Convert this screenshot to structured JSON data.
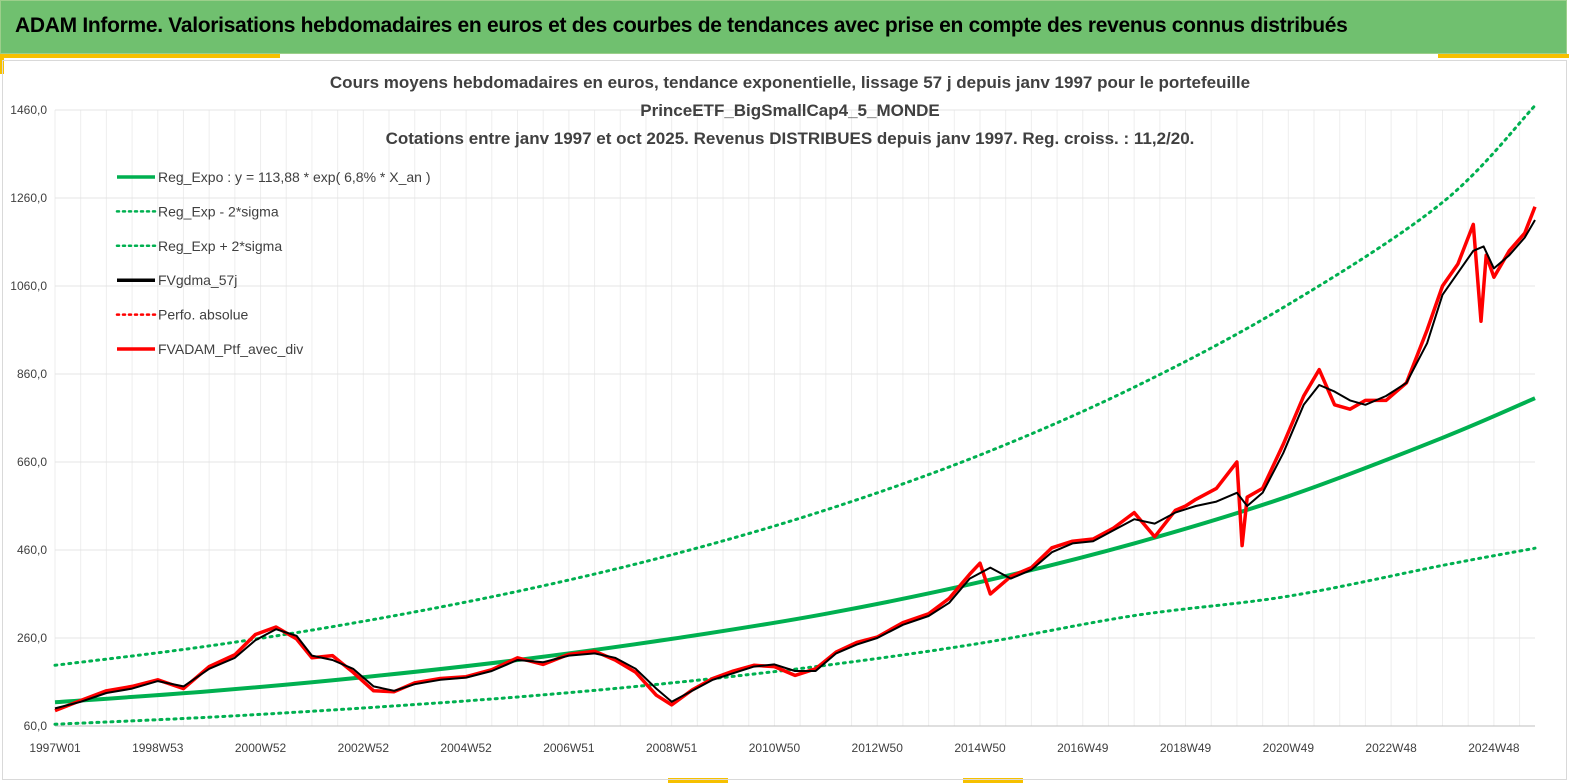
{
  "banner": {
    "title": "ADAM Informe. Valorisations hebdomadaires en euros et des courbes de tendances avec prise en compte des revenus connus distribués"
  },
  "colors": {
    "banner": "#70c06f",
    "accent_gold": "#f6c000",
    "reg_green": "#00b050",
    "smooth_black": "#000000",
    "perf_red": "#ff0000"
  },
  "chart_data": {
    "type": "line",
    "title_lines": [
      "Cours moyens hebdomadaires  en euros, tendance exponentielle, lissage 57 j depuis janv 1997 pour le portefeuille",
      "PrinceETF_BigSmallCap4_5_MONDE",
      "Cotations  entre janv 1997 et oct 2025. Revenus DISTRIBUES  depuis janv 1997. Reg. croiss. : 11,2/20."
    ],
    "ylim": [
      60,
      1460
    ],
    "yticks": [
      "60,0",
      "260,0",
      "460,0",
      "660,0",
      "860,0",
      "1060,0",
      "1260,0",
      "1460,0"
    ],
    "xlim": [
      1997.0,
      2025.8
    ],
    "xticks": [
      {
        "label": "1997W01",
        "year": 1997.0
      },
      {
        "label": "1998W53",
        "year": 1999.0
      },
      {
        "label": "2000W52",
        "year": 2001.0
      },
      {
        "label": "2002W52",
        "year": 2003.0
      },
      {
        "label": "2004W52",
        "year": 2005.0
      },
      {
        "label": "2006W51",
        "year": 2007.0
      },
      {
        "label": "2008W51",
        "year": 2009.0
      },
      {
        "label": "2010W50",
        "year": 2011.0
      },
      {
        "label": "2012W50",
        "year": 2013.0
      },
      {
        "label": "2014W50",
        "year": 2015.0
      },
      {
        "label": "2016W49",
        "year": 2017.0
      },
      {
        "label": "2018W49",
        "year": 2019.0
      },
      {
        "label": "2020W49",
        "year": 2021.0
      },
      {
        "label": "2022W48",
        "year": 2023.0
      },
      {
        "label": "2024W48",
        "year": 2025.0
      }
    ],
    "grid": true,
    "legend_position": "top-left",
    "legend": [
      {
        "label": "Reg_Expo : y = 113,88 * exp( 6,8% *  X_an )",
        "color": "#00b050",
        "dash": "solid"
      },
      {
        "label": "Reg_Exp - 2*sigma",
        "color": "#00b050",
        "dash": "dotted"
      },
      {
        "label": "Reg_Exp + 2*sigma",
        "color": "#00b050",
        "dash": "dotted"
      },
      {
        "label": "FVgdma_57j",
        "color": "#000000",
        "dash": "solid"
      },
      {
        "label": "Perfo. absolue",
        "color": "#ff0000",
        "dash": "dotted"
      },
      {
        "label": "FVADAM_Ptf_avec_div",
        "color": "#ff0000",
        "dash": "solid"
      }
    ],
    "series": [
      {
        "name": "Reg_Expo : y = 113,88 * exp( 6,8% *  X_an )",
        "x": [
          1997.0,
          2000.0,
          2003.0,
          2006.0,
          2009.0,
          2012.0,
          2015.0,
          2018.0,
          2021.0,
          2024.0,
          2025.8
        ],
        "y": [
          114,
          139,
          171,
          210,
          258,
          315,
          387,
          475,
          582,
          715,
          805
        ]
      },
      {
        "name": "Reg_Exp - 2*sigma",
        "x": [
          1997.0,
          2000.0,
          2003.0,
          2006.0,
          2009.0,
          2012.0,
          2015.0,
          2018.0,
          2021.0,
          2024.0,
          2025.8
        ],
        "y": [
          64,
          80,
          101,
          126,
          158,
          198,
          248,
          311,
          355,
          425,
          464
        ]
      },
      {
        "name": "Reg_Exp + 2*sigma",
        "x": [
          1997.0,
          2000.0,
          2003.0,
          2006.0,
          2009.0,
          2012.0,
          2015.0,
          2018.0,
          2021.0,
          2024.0,
          2025.8
        ],
        "y": [
          198,
          242,
          298,
          366,
          449,
          551,
          676,
          830,
          1018,
          1250,
          1470
        ]
      },
      {
        "name": "FVgdma_57j",
        "x": [
          1997.0,
          1997.5,
          1998.0,
          1998.5,
          1999.0,
          1999.5,
          2000.0,
          2000.5,
          2000.9,
          2001.3,
          2001.7,
          2002.0,
          2002.4,
          2002.8,
          2003.2,
          2003.6,
          2004.0,
          2004.5,
          2005.0,
          2005.5,
          2006.0,
          2006.5,
          2007.0,
          2007.5,
          2007.9,
          2008.3,
          2008.7,
          2009.0,
          2009.4,
          2009.8,
          2010.2,
          2010.6,
          2011.0,
          2011.4,
          2011.8,
          2012.2,
          2012.6,
          2013.0,
          2013.5,
          2014.0,
          2014.4,
          2014.8,
          2015.2,
          2015.6,
          2016.0,
          2016.4,
          2016.8,
          2017.2,
          2017.6,
          2018.0,
          2018.4,
          2018.8,
          2019.2,
          2019.6,
          2020.0,
          2020.2,
          2020.5,
          2020.9,
          2021.3,
          2021.6,
          2021.9,
          2022.2,
          2022.5,
          2022.9,
          2023.3,
          2023.7,
          2024.0,
          2024.3,
          2024.6,
          2024.8,
          2025.0,
          2025.3,
          2025.6,
          2025.8
        ],
        "y": [
          100,
          115,
          135,
          145,
          162,
          150,
          190,
          215,
          255,
          280,
          265,
          220,
          210,
          190,
          150,
          140,
          155,
          165,
          170,
          185,
          210,
          205,
          220,
          225,
          215,
          190,
          145,
          115,
          140,
          165,
          180,
          195,
          200,
          185,
          185,
          225,
          245,
          260,
          290,
          310,
          340,
          395,
          420,
          395,
          415,
          455,
          475,
          480,
          505,
          530,
          520,
          545,
          560,
          570,
          590,
          560,
          590,
          680,
          790,
          835,
          820,
          800,
          790,
          810,
          840,
          930,
          1040,
          1090,
          1140,
          1150,
          1100,
          1130,
          1170,
          1210
        ]
      },
      {
        "name": "FVADAM_Ptf_avec_div",
        "x": [
          1997.0,
          1997.5,
          1998.0,
          1998.5,
          1999.0,
          1999.5,
          2000.0,
          2000.5,
          2000.9,
          2001.3,
          2001.7,
          2002.0,
          2002.4,
          2002.8,
          2003.2,
          2003.6,
          2004.0,
          2004.5,
          2005.0,
          2005.5,
          2006.0,
          2006.5,
          2007.0,
          2007.5,
          2007.9,
          2008.3,
          2008.7,
          2009.0,
          2009.4,
          2009.8,
          2010.2,
          2010.6,
          2011.0,
          2011.4,
          2011.8,
          2012.2,
          2012.6,
          2013.0,
          2013.5,
          2014.0,
          2014.4,
          2014.8,
          2015.0,
          2015.2,
          2015.6,
          2016.0,
          2016.4,
          2016.8,
          2017.2,
          2017.6,
          2018.0,
          2018.4,
          2018.8,
          2019.0,
          2019.2,
          2019.6,
          2020.0,
          2020.1,
          2020.2,
          2020.5,
          2020.9,
          2021.3,
          2021.6,
          2021.9,
          2022.2,
          2022.5,
          2022.9,
          2023.3,
          2023.7,
          2024.0,
          2024.3,
          2024.6,
          2024.75,
          2024.85,
          2025.0,
          2025.3,
          2025.6,
          2025.8
        ],
        "y": [
          95,
          118,
          140,
          150,
          165,
          145,
          195,
          222,
          268,
          285,
          258,
          215,
          220,
          182,
          140,
          138,
          158,
          168,
          172,
          188,
          215,
          200,
          223,
          230,
          210,
          182,
          130,
          108,
          142,
          168,
          185,
          198,
          195,
          175,
          190,
          228,
          250,
          262,
          295,
          315,
          350,
          405,
          430,
          360,
          400,
          420,
          465,
          480,
          485,
          510,
          545,
          490,
          550,
          560,
          575,
          600,
          660,
          470,
          580,
          600,
          700,
          810,
          870,
          790,
          780,
          800,
          800,
          840,
          960,
          1060,
          1110,
          1200,
          980,
          1130,
          1080,
          1140,
          1180,
          1240
        ]
      }
    ]
  }
}
